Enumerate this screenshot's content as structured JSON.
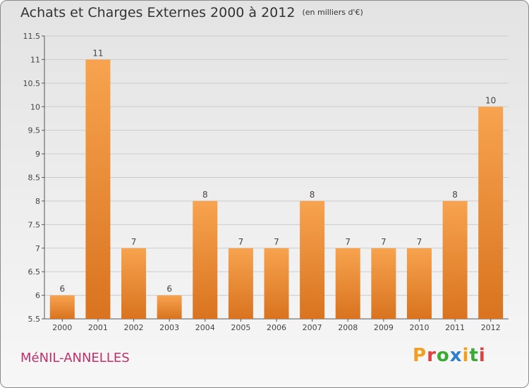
{
  "header": {
    "title": "Achats et Charges Externes 2000 à 2012",
    "unit_note": "(en milliers d'€)"
  },
  "footer": {
    "commune_name": "MéNIL-ANNELLES",
    "logo_text": "Proxiti"
  },
  "colors": {
    "bar_light": "#f7a34f",
    "bar_dark": "#d9731f",
    "gridline": "#cccccc",
    "commune_text": "#c0306a"
  },
  "logo_letter_colors": [
    "#f0a020",
    "#e04040",
    "#3aaa35",
    "#2d7fd0",
    "#f0a020",
    "#3aaa35",
    "#e04040"
  ],
  "chart_data": {
    "type": "bar",
    "categories": [
      "2000",
      "2001",
      "2002",
      "2003",
      "2004",
      "2005",
      "2006",
      "2007",
      "2008",
      "2009",
      "2010",
      "2011",
      "2012"
    ],
    "values": [
      6,
      11,
      7,
      6,
      8,
      7,
      7,
      8,
      7,
      7,
      7,
      8,
      10
    ],
    "data_labels": [
      "6",
      "11",
      "7",
      "6",
      "8",
      "7",
      "7",
      "8",
      "7",
      "7",
      "7",
      "8",
      "10"
    ],
    "title": "Achats et Charges Externes 2000 à 2012",
    "xlabel": "",
    "ylabel": "",
    "ylim": [
      5.5,
      11.5
    ],
    "yticks": [
      5.5,
      6,
      6.5,
      7,
      7.5,
      8,
      8.5,
      9,
      9.5,
      10,
      10.5,
      11,
      11.5
    ],
    "ytick_labels": [
      "5.5",
      "6",
      "6.5",
      "7",
      "7.5",
      "8",
      "8.5",
      "9",
      "9.5",
      "10",
      "10.5",
      "11",
      "11.5"
    ],
    "grid": true
  }
}
